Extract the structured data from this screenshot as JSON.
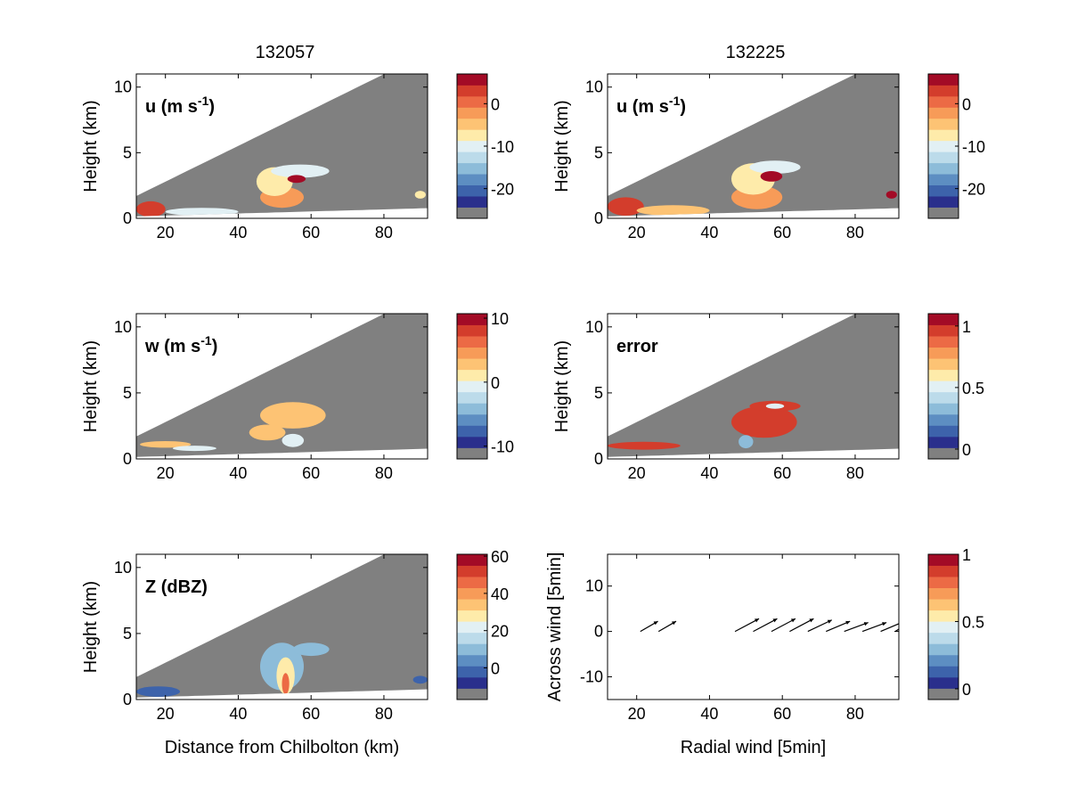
{
  "figure": {
    "columns": [
      {
        "title": "132057"
      },
      {
        "title": "132225"
      }
    ]
  },
  "palette": {
    "colormap": [
      "#808080",
      "#2a2f8c",
      "#3d63ab",
      "#5d8ec2",
      "#8dbcd9",
      "#bcdbea",
      "#e2f0f4",
      "#feebaa",
      "#fdc374",
      "#f79b58",
      "#ec6a45",
      "#d33d2c",
      "#a30b26"
    ],
    "no_data": "#808080",
    "outline": "#000000"
  },
  "chart_data": [
    {
      "id": "u-132057",
      "type": "heatmap",
      "column": 0,
      "label": "u (m s⁻¹)",
      "ylabel": "Height (km)",
      "xlabel": "",
      "xlim": [
        12,
        92
      ],
      "ylim": [
        0,
        11
      ],
      "xticks": [
        20,
        40,
        60,
        80
      ],
      "yticks": [
        0,
        5,
        10
      ],
      "colorbar": {
        "min": -27,
        "max": 7,
        "ticks": [
          0,
          -10,
          -20
        ]
      },
      "blobs": [
        {
          "cx": 52,
          "cy": 1.6,
          "rx": 6,
          "ry": 0.8,
          "v": -3
        },
        {
          "cx": 50,
          "cy": 2.8,
          "rx": 5,
          "ry": 1.1,
          "v": -7
        },
        {
          "cx": 57,
          "cy": 3.6,
          "rx": 8,
          "ry": 0.5,
          "v": -10
        },
        {
          "cx": 56,
          "cy": 3.0,
          "rx": 2.5,
          "ry": 0.3,
          "v": 6
        },
        {
          "cx": 16,
          "cy": 0.7,
          "rx": 4,
          "ry": 0.6,
          "v": 3
        },
        {
          "cx": 30,
          "cy": 0.5,
          "rx": 10,
          "ry": 0.3,
          "v": -9
        },
        {
          "cx": 90,
          "cy": 1.8,
          "rx": 1.5,
          "ry": 0.3,
          "v": -8
        }
      ]
    },
    {
      "id": "u-132225",
      "type": "heatmap",
      "column": 1,
      "label": "u (m s⁻¹)",
      "ylabel": "Height (km)",
      "xlabel": "",
      "xlim": [
        12,
        92
      ],
      "ylim": [
        0,
        11
      ],
      "xticks": [
        20,
        40,
        60,
        80
      ],
      "yticks": [
        0,
        5,
        10
      ],
      "colorbar": {
        "min": -27,
        "max": 7,
        "ticks": [
          0,
          -10,
          -20
        ]
      },
      "blobs": [
        {
          "cx": 53,
          "cy": 1.6,
          "rx": 7,
          "ry": 0.9,
          "v": -3
        },
        {
          "cx": 52,
          "cy": 3.0,
          "rx": 6,
          "ry": 1.2,
          "v": -8
        },
        {
          "cx": 58,
          "cy": 3.9,
          "rx": 7,
          "ry": 0.5,
          "v": -10
        },
        {
          "cx": 57,
          "cy": 3.2,
          "rx": 3,
          "ry": 0.4,
          "v": 6
        },
        {
          "cx": 17,
          "cy": 0.9,
          "rx": 5,
          "ry": 0.7,
          "v": 3
        },
        {
          "cx": 30,
          "cy": 0.6,
          "rx": 10,
          "ry": 0.4,
          "v": -6
        },
        {
          "cx": 90,
          "cy": 1.8,
          "rx": 1.5,
          "ry": 0.3,
          "v": 5
        }
      ]
    },
    {
      "id": "w-132057",
      "type": "heatmap",
      "column": 0,
      "label": "w (m s⁻¹)",
      "ylabel": "Height (km)",
      "xlabel": "",
      "xlim": [
        12,
        92
      ],
      "ylim": [
        0,
        11
      ],
      "xticks": [
        20,
        40,
        60,
        80
      ],
      "yticks": [
        0,
        5,
        10
      ],
      "colorbar": {
        "min": -12,
        "max": 10.7,
        "ticks": [
          10,
          0,
          -10
        ]
      },
      "blobs": [
        {
          "cx": 55,
          "cy": 3.3,
          "rx": 9,
          "ry": 1.0,
          "v": 2
        },
        {
          "cx": 48,
          "cy": 2.0,
          "rx": 5,
          "ry": 0.6,
          "v": 3
        },
        {
          "cx": 55,
          "cy": 1.4,
          "rx": 3,
          "ry": 0.5,
          "v": -1
        },
        {
          "cx": 20,
          "cy": 1.1,
          "rx": 7,
          "ry": 0.25,
          "v": 3
        },
        {
          "cx": 28,
          "cy": 0.8,
          "rx": 6,
          "ry": 0.2,
          "v": -1
        }
      ]
    },
    {
      "id": "error-132225",
      "type": "heatmap",
      "column": 1,
      "label": "error",
      "ylabel": "Height (km)",
      "xlabel": "",
      "xlim": [
        12,
        92
      ],
      "ylim": [
        0,
        11
      ],
      "xticks": [
        20,
        40,
        60,
        80
      ],
      "yticks": [
        0,
        5,
        10
      ],
      "colorbar": {
        "min": -0.08,
        "max": 1.1,
        "ticks": [
          1,
          0.5,
          0
        ]
      },
      "blobs": [
        {
          "cx": 55,
          "cy": 2.8,
          "rx": 9,
          "ry": 1.2,
          "v": 1
        },
        {
          "cx": 58,
          "cy": 4.0,
          "rx": 7,
          "ry": 0.4,
          "v": 1
        },
        {
          "cx": 22,
          "cy": 1.0,
          "rx": 10,
          "ry": 0.3,
          "v": 1
        },
        {
          "cx": 58,
          "cy": 4.0,
          "rx": 2.5,
          "ry": 0.2,
          "v": 0.55
        },
        {
          "cx": 50,
          "cy": 1.3,
          "rx": 2,
          "ry": 0.5,
          "v": 0.3
        }
      ]
    },
    {
      "id": "z-132057",
      "type": "heatmap",
      "column": 0,
      "label": "Z (dBZ)",
      "ylabel": "Height (km)",
      "xlabel": "Distance from Chilbolton (km)",
      "xlim": [
        12,
        92
      ],
      "ylim": [
        0,
        11
      ],
      "xticks": [
        20,
        40,
        60,
        80
      ],
      "yticks": [
        0,
        5,
        10
      ],
      "colorbar": {
        "min": -17,
        "max": 61,
        "ticks": [
          60,
          40,
          20,
          0
        ]
      },
      "blobs": [
        {
          "cx": 52,
          "cy": 2.5,
          "rx": 6,
          "ry": 1.8,
          "v": 10
        },
        {
          "cx": 53,
          "cy": 1.8,
          "rx": 2.5,
          "ry": 1.4,
          "v": 30
        },
        {
          "cx": 53,
          "cy": 1.2,
          "rx": 1.0,
          "ry": 0.8,
          "v": 48
        },
        {
          "cx": 60,
          "cy": 3.8,
          "rx": 5,
          "ry": 0.5,
          "v": 12
        },
        {
          "cx": 18,
          "cy": 0.6,
          "rx": 6,
          "ry": 0.4,
          "v": 0
        },
        {
          "cx": 90,
          "cy": 1.5,
          "rx": 2,
          "ry": 0.3,
          "v": 0
        }
      ]
    },
    {
      "id": "wind-132225",
      "type": "scatter",
      "column": 1,
      "label": "",
      "ylabel": "Across wind [5min]",
      "xlabel": "Radial wind [5min]",
      "xlim": [
        12,
        92
      ],
      "ylim": [
        -15,
        17
      ],
      "xticks": [
        20,
        40,
        60,
        80
      ],
      "yticks": [
        10,
        0,
        -10
      ],
      "colorbar": {
        "min": -0.08,
        "max": 1.0,
        "ticks": [
          1,
          0.5,
          0
        ]
      },
      "arrows": [
        {
          "x": 21,
          "y": 0,
          "dx": 2.2,
          "dy": 1.6
        },
        {
          "x": 26,
          "y": 0,
          "dx": 2.2,
          "dy": 1.6
        },
        {
          "x": 47,
          "y": 0,
          "dx": 3.0,
          "dy": 2.0
        },
        {
          "x": 52,
          "y": 0,
          "dx": 3.0,
          "dy": 2.0
        },
        {
          "x": 57,
          "y": 0,
          "dx": 3.0,
          "dy": 2.0
        },
        {
          "x": 62,
          "y": 0,
          "dx": 3.0,
          "dy": 2.0
        },
        {
          "x": 67,
          "y": 0,
          "dx": 3.0,
          "dy": 1.8
        },
        {
          "x": 72,
          "y": 0,
          "dx": 3.0,
          "dy": 1.6
        },
        {
          "x": 77,
          "y": 0,
          "dx": 3.0,
          "dy": 1.4
        },
        {
          "x": 82,
          "y": 0,
          "dx": 3.0,
          "dy": 1.4
        },
        {
          "x": 87,
          "y": 0,
          "dx": 3.0,
          "dy": 1.6
        },
        {
          "x": 91,
          "y": 0,
          "dx": 1.5,
          "dy": 1.2
        }
      ]
    }
  ]
}
